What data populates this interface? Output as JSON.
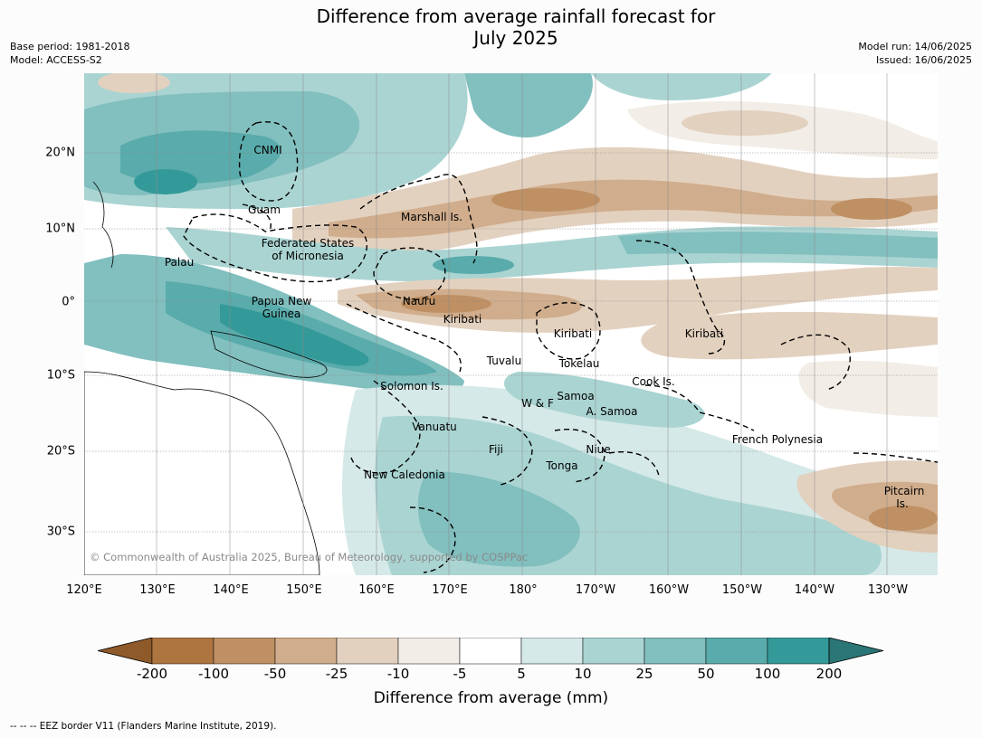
{
  "title_line1": "Difference from average rainfall forecast for",
  "title_line2": "July 2025",
  "meta_left": {
    "base_period": "Base period: 1981-2018",
    "model": "Model: ACCESS-S2"
  },
  "meta_right": {
    "model_run": "Model run: 14/06/2025",
    "issued": "Issued: 16/06/2025"
  },
  "lon_labels": [
    "120°E",
    "130°E",
    "140°E",
    "150°E",
    "160°E",
    "170°E",
    "180°",
    "170°W",
    "160°W",
    "150°W",
    "140°W",
    "130°W"
  ],
  "lat_labels": [
    "20°N",
    "10°N",
    "0°",
    "10°S",
    "20°S",
    "30°S"
  ],
  "regions": {
    "cnmi": "CNMI",
    "guam": "Guam",
    "marshall": "Marshall Is.",
    "fsm1": "Federated States",
    "fsm2": "of Micronesia",
    "palau": "Palau",
    "png1": "Papua New",
    "png2": "Guinea",
    "nauru": "Nauru",
    "kiribati_w": "Kiribati",
    "kiribati_c": "Kiribati",
    "kiribati_e": "Kiribati",
    "tuvalu": "Tuvalu",
    "tokelau": "Tokelau",
    "cook": "Cook Is.",
    "solomon": "Solomon Is.",
    "samoa": "Samoa",
    "wf": "W & F",
    "asamoa": "A. Samoa",
    "vanuatu": "Vanuatu",
    "fiji": "Fiji",
    "niue": "Niue",
    "tonga": "Tonga",
    "frpoly": "French Polynesia",
    "newcal": "New Caledonia",
    "pitcairn1": "Pitcairn",
    "pitcairn2": "Is."
  },
  "copyright": "© Commonwealth of Australia 2025, Bureau of Meteorology, supported by COSPPac",
  "colorbar": {
    "labels": [
      "-200",
      "-100",
      "-50",
      "-25",
      "-10",
      "-5",
      "5",
      "10",
      "25",
      "50",
      "100",
      "200"
    ],
    "colors": [
      "#8f5a2a",
      "#ad7540",
      "#be9064",
      "#d0ad8c",
      "#e3d1bf",
      "#f2ede6",
      "#ffffff",
      "#d5e9e8",
      "#aad4d2",
      "#82bfbf",
      "#5aabab",
      "#349a99",
      "#2a7575"
    ],
    "title": "Difference from average (mm)"
  },
  "footer": "--  --  -- EEZ border V11 (Flanders Marine Institute, 2019)."
}
